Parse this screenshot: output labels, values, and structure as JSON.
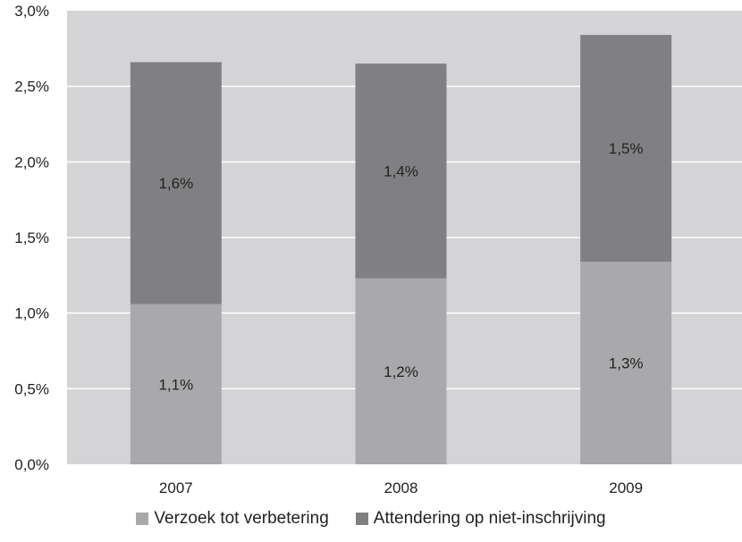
{
  "chart_data": {
    "type": "bar",
    "stacked": true,
    "categories": [
      "2007",
      "2008",
      "2009"
    ],
    "series": [
      {
        "name": "Verzoek tot verbetering",
        "values": [
          1.06,
          1.23,
          1.34
        ],
        "labels": [
          "1,1%",
          "1,2%",
          "1,3%"
        ],
        "color": "#a9a9ab"
      },
      {
        "name": "Attendering op niet-inschrijving",
        "values": [
          1.6,
          1.42,
          1.5
        ],
        "labels": [
          "1,6%",
          "1,4%",
          "1,5%"
        ],
        "color": "#808083"
      }
    ],
    "ylim": [
      0,
      3.0
    ],
    "yticks": [
      {
        "value": 0,
        "label": "0,0%"
      },
      {
        "value": 0.5,
        "label": "0,5%"
      },
      {
        "value": 1.0,
        "label": "1,0%"
      },
      {
        "value": 1.5,
        "label": "1,5%"
      },
      {
        "value": 2.0,
        "label": "2,0%"
      },
      {
        "value": 2.5,
        "label": "2,5%"
      },
      {
        "value": 3.0,
        "label": "3,0%"
      }
    ],
    "grid": true,
    "legend_position": "bottom",
    "plot_background": "#d4d4d6"
  }
}
